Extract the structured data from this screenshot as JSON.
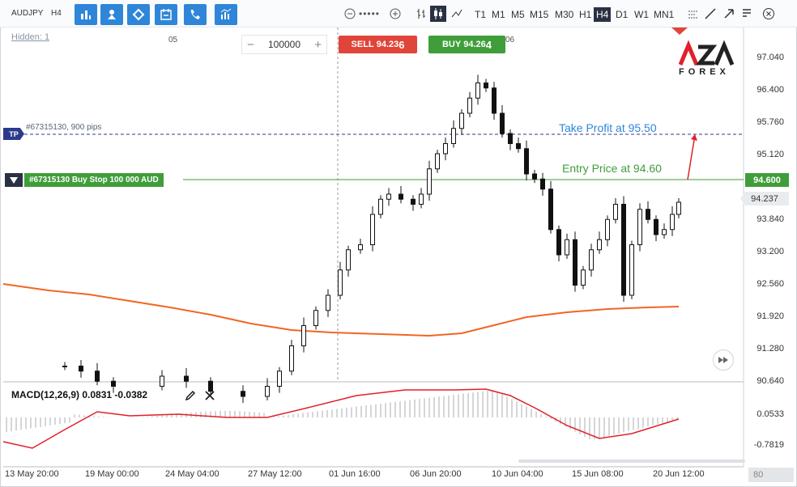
{
  "toolbar": {
    "symbol": "AUDJPY",
    "timeframe_label": "H4",
    "timeframes": [
      "T1",
      "M1",
      "M5",
      "M15",
      "M30",
      "H1",
      "H4",
      "D1",
      "W1",
      "MN1"
    ],
    "active_timeframe": "H4"
  },
  "chart": {
    "hidden_label": "Hidden: 1",
    "time_ticks_top": [
      "05",
      "06"
    ],
    "quantity": "100000",
    "sell": {
      "label": "SELL",
      "price_main": "94.23",
      "price_big": "6"
    },
    "buy": {
      "label": "BUY",
      "price_main": "94.26",
      "price_big": "4"
    },
    "tp_badge": "TP",
    "tp_label": "#67315130, 900 pips",
    "order_label": "#67315130 Buy Stop 100 000 AUD",
    "annotation_tp": "Take Profit at 95.50",
    "annotation_entry": "Entry Price at 94.60",
    "entry_price_box": "94.600",
    "last_price_box": "94.237",
    "y_axis": [
      "97.040",
      "96.400",
      "95.760",
      "95.120",
      "93.840",
      "93.200",
      "92.560",
      "91.920",
      "91.280",
      "90.640"
    ],
    "macd_label": "MACD(12,26,9) 0.0831 -0.0382",
    "macd_axis": [
      "0.0533",
      "-0.7819"
    ],
    "x_axis": [
      "13 May 20:00",
      "19 May 00:00",
      "24 May 04:00",
      "27 May 12:00",
      "01 Jun 16:00",
      "06 Jun 20:00",
      "10 Jun 04:00",
      "15 Jun 08:00",
      "20 Jun 12:00"
    ],
    "zoom": "80",
    "logo_text": "AZA",
    "logo_sub": "FOREX"
  },
  "colors": {
    "accent": "#2f86d8",
    "sell": "#e0453a",
    "buy": "#3f9e3a",
    "ma_line": "#f26522",
    "macd_signal": "#e0202a"
  }
}
